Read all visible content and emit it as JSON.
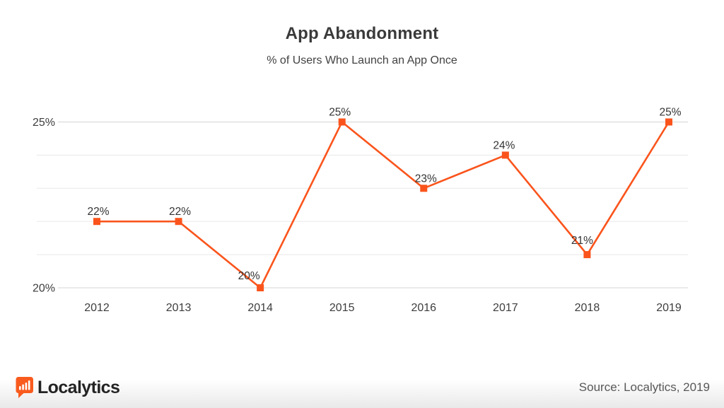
{
  "header": {
    "title": "App Abandonment",
    "subtitle": "% of Users Who Launch an App Once"
  },
  "chart_data": {
    "type": "line",
    "title": "App Abandonment",
    "subtitle": "% of Users Who Launch an App Once",
    "categories": [
      "2012",
      "2013",
      "2014",
      "2015",
      "2016",
      "2017",
      "2018",
      "2019"
    ],
    "values": [
      22,
      22,
      20,
      25,
      23,
      24,
      21,
      25
    ],
    "point_labels": [
      "22%",
      "22%",
      "20%",
      "25%",
      "23%",
      "24%",
      "21%",
      "25%"
    ],
    "xlabel": "",
    "ylabel": "",
    "ylim": [
      20,
      25
    ],
    "y_ticks_shown": [
      {
        "value": 25,
        "label": "25%"
      },
      {
        "value": 20,
        "label": "20%"
      }
    ],
    "gridline_step": 1,
    "grid": true,
    "legend_position": "none",
    "line_color": "#FA541C",
    "marker": "square",
    "marker_color": "#FA541C",
    "label_color": "#333333",
    "axis_label_color": "#3d3d3d"
  },
  "footer": {
    "brand": "Localytics",
    "logo_icon": "bar-chart-speech-bubble-icon",
    "logo_color": "#F95B1E",
    "source": "Source: Localytics, 2019"
  }
}
